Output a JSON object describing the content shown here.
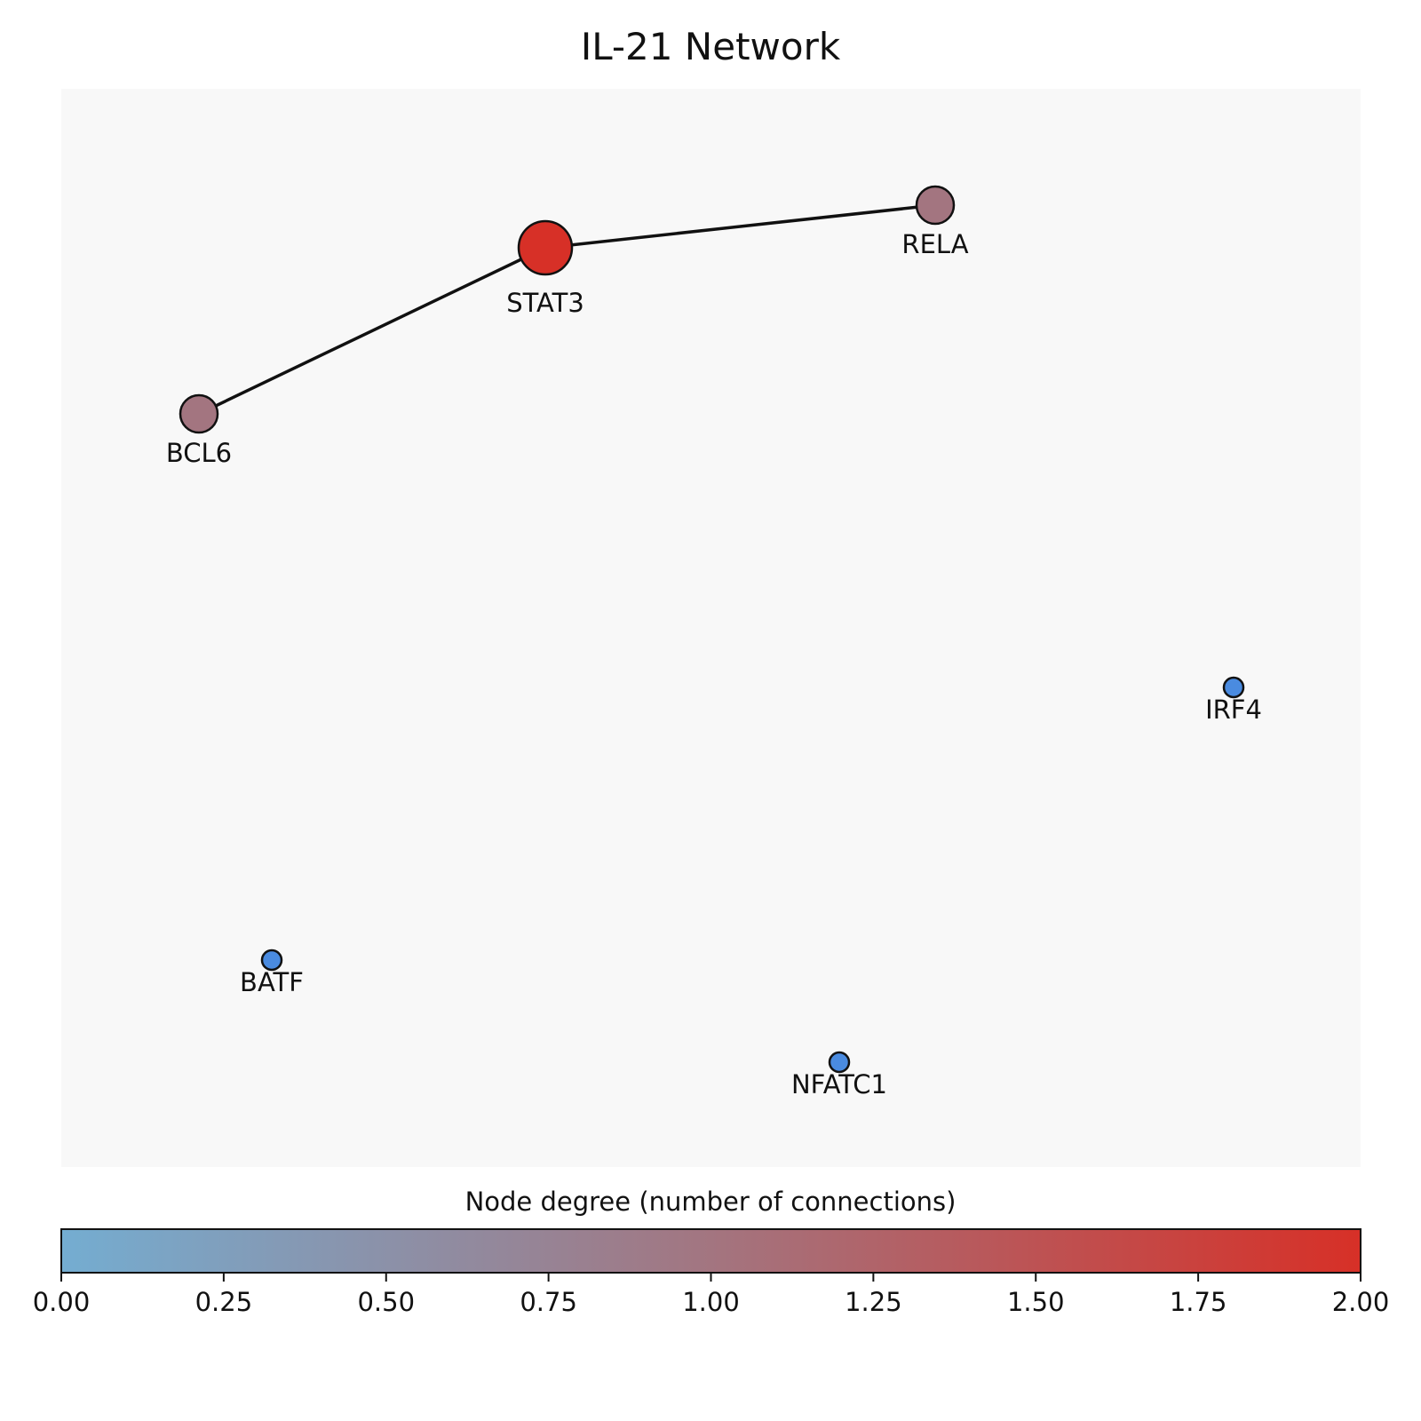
{
  "chart_data": {
    "type": "network",
    "title": "IL-21 Network",
    "nodes": [
      {
        "id": "STAT3",
        "label": "STAT3",
        "degree": 2
      },
      {
        "id": "RELA",
        "label": "RELA",
        "degree": 1
      },
      {
        "id": "BCL6",
        "label": "BCL6",
        "degree": 1
      },
      {
        "id": "IRF4",
        "label": "IRF4",
        "degree": 0
      },
      {
        "id": "BATF",
        "label": "BATF",
        "degree": 0
      },
      {
        "id": "NFATC1",
        "label": "NFATC1",
        "degree": 0
      }
    ],
    "edges": [
      {
        "source": "STAT3",
        "target": "RELA"
      },
      {
        "source": "STAT3",
        "target": "BCL6"
      }
    ],
    "colorbar": {
      "label": "Node degree (number of connections)",
      "range": [
        0,
        2
      ],
      "ticks": [
        "0.00",
        "0.25",
        "0.50",
        "0.75",
        "1.00",
        "1.25",
        "1.50",
        "1.75",
        "2.00"
      ],
      "colors": [
        "#74add1",
        "#d73027"
      ]
    },
    "plot_background": "#f8f8f8"
  }
}
